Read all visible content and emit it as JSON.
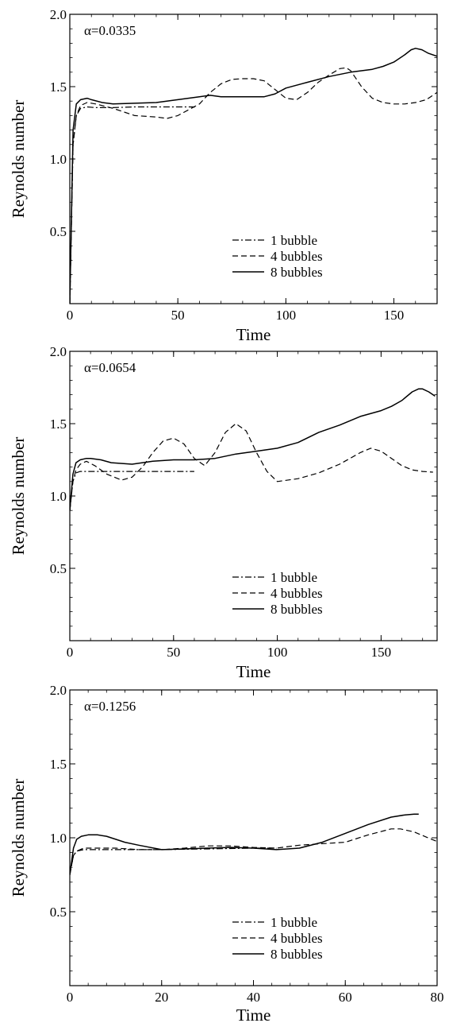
{
  "chart_data": [
    {
      "type": "line",
      "annotation": "α=0.0335",
      "xlabel": "Time",
      "ylabel": "Reynolds number",
      "xlim": [
        0,
        170
      ],
      "ylim": [
        0,
        2.0
      ],
      "xticks": [
        0,
        50,
        100,
        150
      ],
      "yticks": [
        0.5,
        1.0,
        1.5,
        2.0
      ],
      "xtick_labels": [
        "0",
        "50",
        "100",
        "150"
      ],
      "ytick_labels": [
        "0.5",
        "1.0",
        "1.5",
        "2.0"
      ],
      "legend_position": "bottom-center",
      "series": [
        {
          "name": "1 bubble",
          "style": "dashdot",
          "x": [
            0,
            1.5,
            3,
            5,
            8,
            12,
            20,
            30,
            40,
            50,
            58
          ],
          "y": [
            0,
            1.1,
            1.3,
            1.35,
            1.36,
            1.355,
            1.355,
            1.36,
            1.36,
            1.36,
            1.36
          ]
        },
        {
          "name": "4 bubbles",
          "style": "dashed",
          "x": [
            0,
            1.5,
            3,
            5,
            8,
            12,
            20,
            30,
            40,
            45,
            50,
            60,
            65,
            70,
            75,
            80,
            85,
            90,
            95,
            100,
            105,
            110,
            115,
            120,
            125,
            128,
            130,
            135,
            140,
            145,
            150,
            155,
            160,
            165,
            170
          ],
          "y": [
            0,
            1.1,
            1.3,
            1.37,
            1.39,
            1.38,
            1.35,
            1.3,
            1.29,
            1.28,
            1.3,
            1.38,
            1.46,
            1.52,
            1.55,
            1.555,
            1.555,
            1.54,
            1.48,
            1.42,
            1.41,
            1.46,
            1.53,
            1.58,
            1.625,
            1.63,
            1.61,
            1.5,
            1.42,
            1.39,
            1.38,
            1.38,
            1.39,
            1.41,
            1.46
          ]
        },
        {
          "name": "8 bubbles",
          "style": "solid",
          "x": [
            0,
            1.5,
            3,
            5,
            8,
            10,
            15,
            20,
            30,
            40,
            50,
            60,
            65,
            70,
            80,
            90,
            95,
            100,
            110,
            120,
            130,
            140,
            145,
            150,
            155,
            158,
            160,
            163,
            166,
            170
          ],
          "y": [
            0,
            1.2,
            1.38,
            1.41,
            1.42,
            1.41,
            1.39,
            1.38,
            1.385,
            1.39,
            1.41,
            1.43,
            1.44,
            1.43,
            1.43,
            1.43,
            1.45,
            1.49,
            1.53,
            1.57,
            1.6,
            1.62,
            1.64,
            1.67,
            1.72,
            1.755,
            1.765,
            1.755,
            1.73,
            1.71
          ]
        }
      ]
    },
    {
      "type": "line",
      "annotation": "α=0.0654",
      "xlabel": "Time",
      "ylabel": "Reynolds number",
      "xlim": [
        0,
        177
      ],
      "ylim": [
        0,
        2.0
      ],
      "xticks": [
        0,
        50,
        100,
        150
      ],
      "yticks": [
        0.5,
        1.0,
        1.5,
        2.0
      ],
      "xtick_labels": [
        "0",
        "50",
        "100",
        "150"
      ],
      "ytick_labels": [
        "0.5",
        "1.0",
        "1.5",
        "2.0"
      ],
      "legend_position": "bottom-center",
      "series": [
        {
          "name": "1 bubble",
          "style": "dashdot",
          "x": [
            0,
            1.5,
            3,
            5,
            10,
            20,
            30,
            40,
            50,
            60
          ],
          "y": [
            0.9,
            1.1,
            1.16,
            1.17,
            1.17,
            1.17,
            1.17,
            1.17,
            1.17,
            1.17
          ]
        },
        {
          "name": "4 bubbles",
          "style": "dashed",
          "x": [
            0,
            1.5,
            3,
            5,
            8,
            12,
            18,
            25,
            30,
            35,
            40,
            45,
            50,
            55,
            60,
            65,
            70,
            75,
            80,
            85,
            90,
            95,
            100,
            110,
            120,
            130,
            140,
            145,
            150,
            155,
            160,
            165,
            170,
            175
          ],
          "y": [
            0.9,
            1.1,
            1.18,
            1.22,
            1.24,
            1.21,
            1.15,
            1.11,
            1.13,
            1.2,
            1.3,
            1.38,
            1.4,
            1.36,
            1.26,
            1.21,
            1.3,
            1.44,
            1.5,
            1.45,
            1.3,
            1.17,
            1.1,
            1.12,
            1.16,
            1.22,
            1.3,
            1.33,
            1.31,
            1.26,
            1.21,
            1.18,
            1.17,
            1.165
          ]
        },
        {
          "name": "8 bubbles",
          "style": "solid",
          "x": [
            0,
            1.5,
            3,
            5,
            8,
            10,
            15,
            20,
            30,
            40,
            50,
            60,
            70,
            80,
            90,
            100,
            110,
            120,
            130,
            140,
            150,
            155,
            160,
            165,
            168,
            170,
            173,
            176
          ],
          "y": [
            0.9,
            1.15,
            1.23,
            1.25,
            1.26,
            1.26,
            1.25,
            1.23,
            1.22,
            1.24,
            1.25,
            1.25,
            1.26,
            1.29,
            1.31,
            1.33,
            1.37,
            1.44,
            1.49,
            1.55,
            1.59,
            1.62,
            1.66,
            1.72,
            1.74,
            1.74,
            1.72,
            1.69
          ]
        }
      ]
    },
    {
      "type": "line",
      "annotation": "α=0.1256",
      "xlabel": "Time",
      "ylabel": "Reynolds number",
      "xlim": [
        0,
        80
      ],
      "ylim": [
        0,
        2.0
      ],
      "xticks": [
        0,
        20,
        40,
        60,
        80
      ],
      "yticks": [
        0.5,
        1.0,
        1.5,
        2.0
      ],
      "xtick_labels": [
        "0",
        "20",
        "40",
        "60",
        "80"
      ],
      "ytick_labels": [
        "0.5",
        "1.0",
        "1.5",
        "2.0"
      ],
      "legend_position": "bottom-center",
      "series": [
        {
          "name": "1 bubble",
          "style": "dashdot",
          "x": [
            0,
            0.8,
            1.5,
            3,
            5,
            10,
            15,
            20,
            30,
            40,
            45
          ],
          "y": [
            0.75,
            0.88,
            0.91,
            0.92,
            0.92,
            0.92,
            0.92,
            0.92,
            0.925,
            0.93,
            0.93
          ]
        },
        {
          "name": "4 bubbles",
          "style": "dashed",
          "x": [
            0,
            0.8,
            1.5,
            3,
            5,
            10,
            15,
            20,
            25,
            30,
            35,
            40,
            45,
            50,
            55,
            60,
            65,
            70,
            72,
            75,
            78,
            80
          ],
          "y": [
            0.75,
            0.88,
            0.91,
            0.93,
            0.93,
            0.93,
            0.92,
            0.92,
            0.93,
            0.945,
            0.945,
            0.935,
            0.93,
            0.95,
            0.96,
            0.97,
            1.02,
            1.06,
            1.06,
            1.04,
            1.0,
            0.975
          ]
        },
        {
          "name": "8 bubbles",
          "style": "solid",
          "x": [
            0,
            0.8,
            1.5,
            2.5,
            4,
            6,
            8,
            10,
            12,
            15,
            20,
            25,
            30,
            35,
            40,
            45,
            50,
            55,
            60,
            65,
            70,
            73,
            75,
            76
          ],
          "y": [
            0.75,
            0.93,
            0.99,
            1.01,
            1.02,
            1.02,
            1.01,
            0.99,
            0.97,
            0.95,
            0.92,
            0.925,
            0.93,
            0.935,
            0.93,
            0.92,
            0.93,
            0.97,
            1.03,
            1.09,
            1.14,
            1.155,
            1.16,
            1.16
          ]
        }
      ]
    }
  ]
}
